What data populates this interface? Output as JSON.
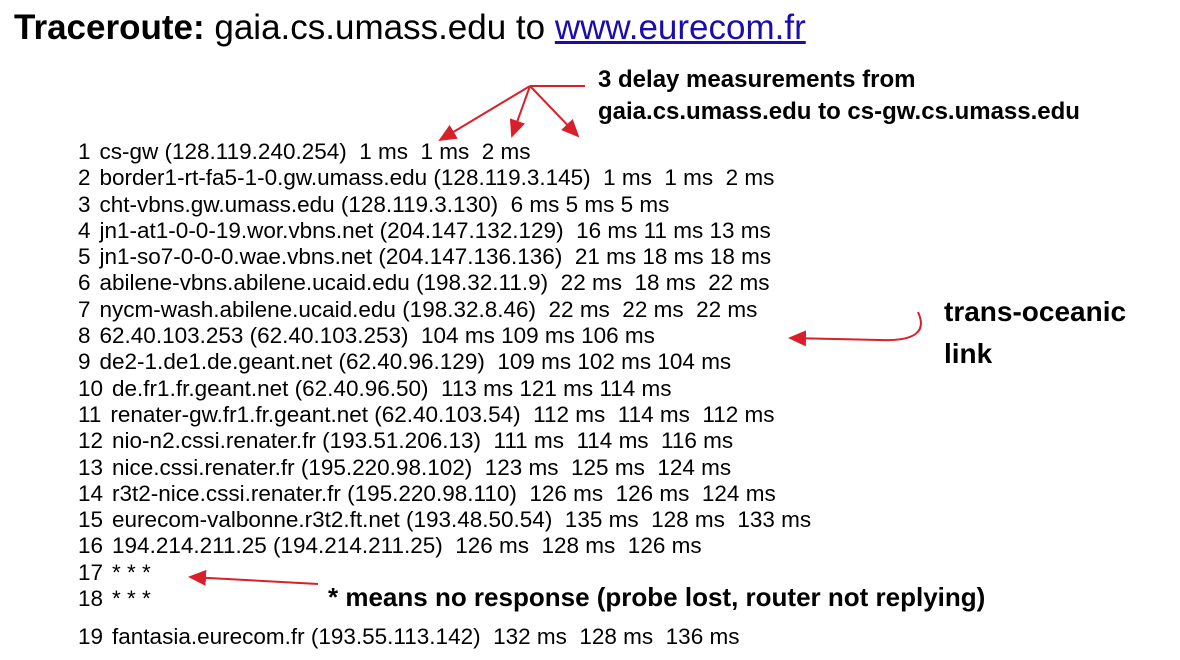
{
  "header": {
    "label": "Traceroute:",
    "text": "gaia.cs.umass.edu to",
    "link": "www.eurecom.fr"
  },
  "annotations": {
    "delay_line1": "3 delay measurements from",
    "delay_line2": "gaia.cs.umass.edu to cs-gw.cs.umass.edu",
    "oceanic_line1": "trans-oceanic",
    "oceanic_line2": "link",
    "no_response": "* means no response (probe lost, router not replying)"
  },
  "lines": [
    {
      "hop": "1",
      "text": "cs-gw (128.119.240.254)  1 ms  1 ms  2 ms"
    },
    {
      "hop": "2",
      "text": "border1-rt-fa5-1-0.gw.umass.edu (128.119.3.145)  1 ms  1 ms  2 ms"
    },
    {
      "hop": "3",
      "text": "cht-vbns.gw.umass.edu (128.119.3.130)  6 ms 5 ms 5 ms"
    },
    {
      "hop": "4",
      "text": "jn1-at1-0-0-19.wor.vbns.net (204.147.132.129)  16 ms 11 ms 13 ms"
    },
    {
      "hop": "5",
      "text": "jn1-so7-0-0-0.wae.vbns.net (204.147.136.136)  21 ms 18 ms 18 ms"
    },
    {
      "hop": "6",
      "text": "abilene-vbns.abilene.ucaid.edu (198.32.11.9)  22 ms  18 ms  22 ms"
    },
    {
      "hop": "7",
      "text": "nycm-wash.abilene.ucaid.edu (198.32.8.46)  22 ms  22 ms  22 ms"
    },
    {
      "hop": "8",
      "text": "62.40.103.253 (62.40.103.253)  104 ms 109 ms 106 ms"
    },
    {
      "hop": "9",
      "text": "de2-1.de1.de.geant.net (62.40.96.129)  109 ms 102 ms 104 ms"
    },
    {
      "hop": "10",
      "text": "de.fr1.fr.geant.net (62.40.96.50)  113 ms 121 ms 114 ms"
    },
    {
      "hop": "11",
      "text": "renater-gw.fr1.fr.geant.net (62.40.103.54)  112 ms  114 ms  112 ms"
    },
    {
      "hop": "12",
      "text": "nio-n2.cssi.renater.fr (193.51.206.13)  111 ms  114 ms  116 ms"
    },
    {
      "hop": "13",
      "text": "nice.cssi.renater.fr (195.220.98.102)  123 ms  125 ms  124 ms"
    },
    {
      "hop": "14",
      "text": "r3t2-nice.cssi.renater.fr (195.220.98.110)  126 ms  126 ms  124 ms"
    },
    {
      "hop": "15",
      "text": "eurecom-valbonne.r3t2.ft.net (193.48.50.54)  135 ms  128 ms  133 ms"
    },
    {
      "hop": "16",
      "text": "194.214.211.25 (194.214.211.25)  126 ms  128 ms  126 ms"
    },
    {
      "hop": "17",
      "text": "* * *"
    },
    {
      "hop": "18",
      "text": "* * *"
    },
    {
      "hop": "19",
      "text": "fantasia.eurecom.fr (193.55.113.142)  132 ms  128 ms  136 ms"
    }
  ]
}
